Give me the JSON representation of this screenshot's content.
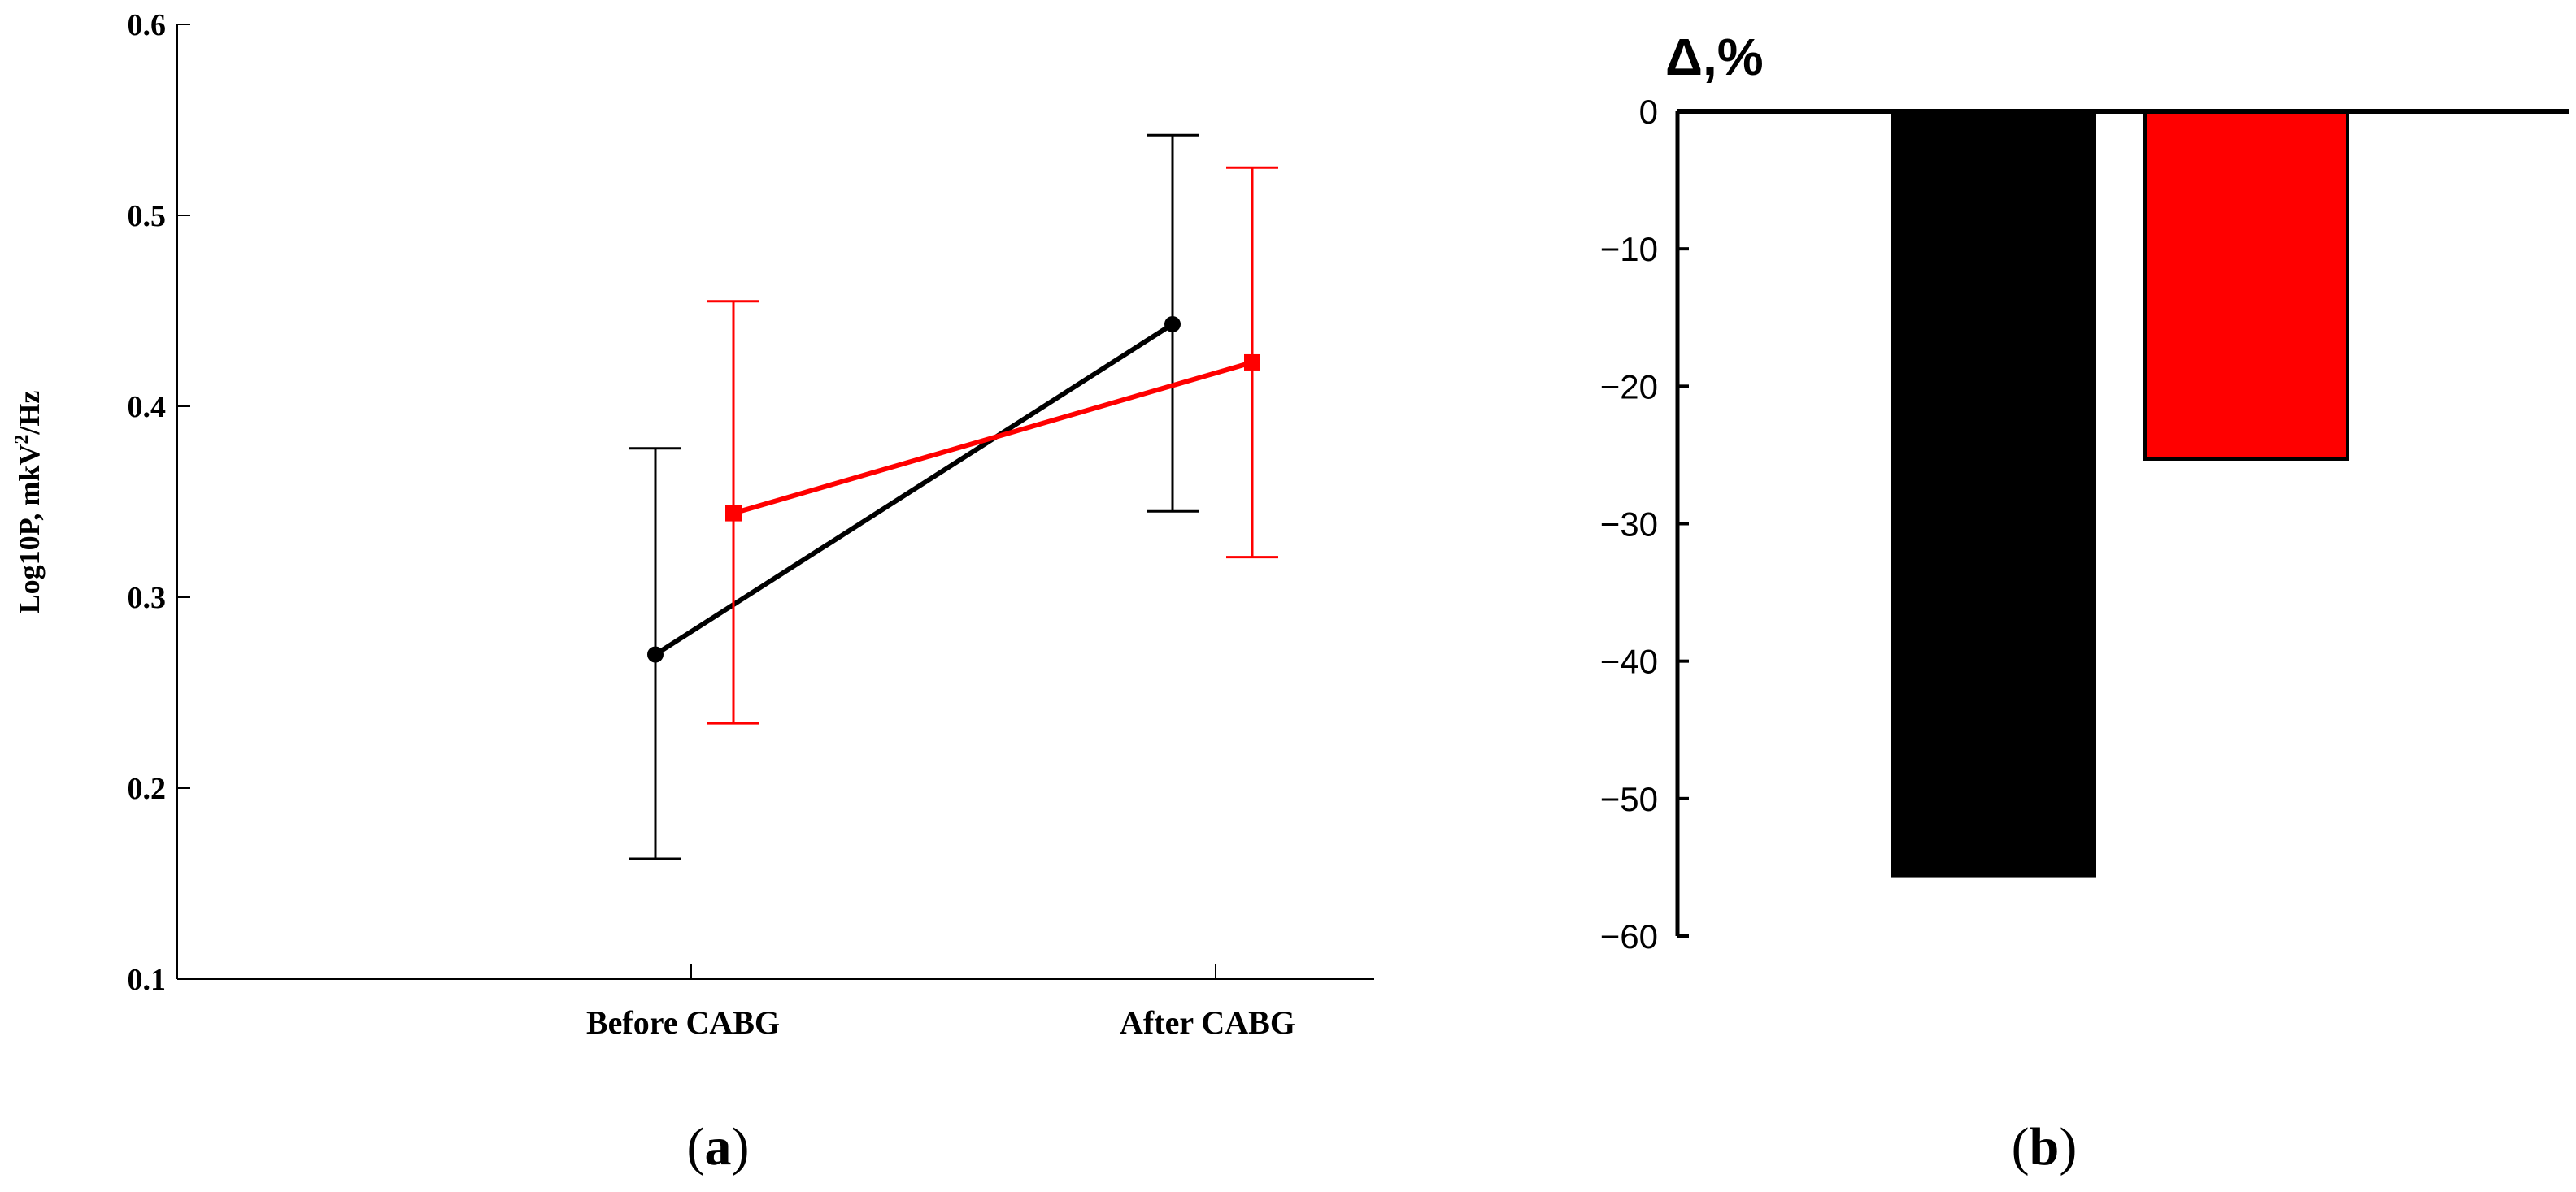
{
  "chart_data": [
    {
      "panel": "a",
      "type": "line",
      "panel_label_open": "(",
      "panel_label_letter": "a",
      "panel_label_close": ")",
      "ylabel": "Log10P, mkV",
      "ylabel_sup": "2",
      "ylabel_tail": "/Hz",
      "ylim": [
        0.1,
        0.6
      ],
      "yticks": [
        "0.1",
        "0.2",
        "0.3",
        "0.4",
        "0.5",
        "0.6"
      ],
      "categories": [
        "Before CABG",
        "After CABG"
      ],
      "series": [
        {
          "name": "black-series",
          "color": "#000000",
          "marker": "circle",
          "values": [
            0.27,
            0.443
          ],
          "err_low": [
            0.163,
            0.345
          ],
          "err_high": [
            0.378,
            0.542
          ]
        },
        {
          "name": "red-series",
          "color": "#ff0000",
          "marker": "square",
          "values": [
            0.344,
            0.423
          ],
          "err_low": [
            0.234,
            0.321
          ],
          "err_high": [
            0.455,
            0.525
          ]
        }
      ]
    },
    {
      "panel": "b",
      "type": "bar",
      "title": "Δ,%",
      "panel_label_open": "(",
      "panel_label_letter": "b",
      "panel_label_close": ")",
      "ylim": [
        -60,
        0
      ],
      "yticks": [
        "0",
        "-10",
        "-20",
        "-30",
        "-40",
        "-50",
        "-60"
      ],
      "series": [
        {
          "name": "black-bar",
          "color": "#000000",
          "value": -55.6
        },
        {
          "name": "red-bar",
          "color": "#ff0000",
          "value": -25.3
        }
      ]
    }
  ]
}
